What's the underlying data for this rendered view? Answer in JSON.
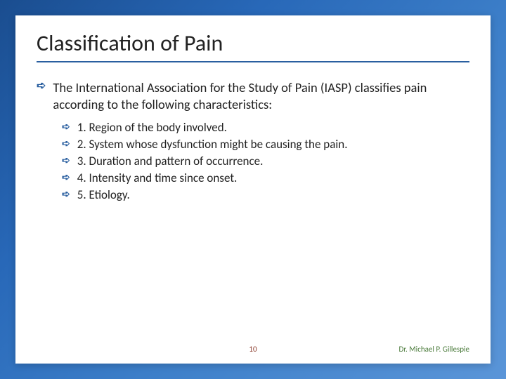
{
  "slide": {
    "title": "Classification of Pain",
    "intro": "The International Association for the Study of Pain (IASP) classifies pain according to the following characteristics:",
    "items": {
      "0": "1.  Region of the body involved.",
      "1": "2.  System whose dysfunction might be causing the pain.",
      "2": "3.  Duration and pattern of occurrence.",
      "3": "4.  Intensity and time since onset.",
      "4": "5.  Etiology."
    },
    "slide_number": "10",
    "author": "Dr. Michael P. Gillespie"
  },
  "style": {
    "background_gradient": [
      "#1a4d8f",
      "#2868b8",
      "#3d7fc9",
      "#5a95d8"
    ],
    "slide_bg": "#ffffff",
    "accent_color": "#2a5fa0",
    "title_fontsize": 32,
    "intro_fontsize": 18.5,
    "item_fontsize": 17,
    "footer_fontsize": 11,
    "slide_number_color": "#8a3a2a",
    "author_color": "#4a7a3a",
    "bullet_glyph": "➪"
  }
}
